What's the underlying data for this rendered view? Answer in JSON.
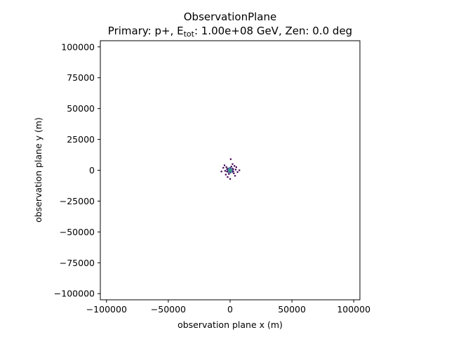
{
  "chart_data": {
    "type": "heatmap",
    "title": "ObservationPlane",
    "subtitle": {
      "prefix": "Primary: p+, E",
      "subscript": "tot",
      "suffix": ": 1.00e+08 GeV, Zen: 0.0 deg"
    },
    "xlabel": "observation plane x (m)",
    "ylabel": "observation plane y (m)",
    "xlim": [
      -105000,
      105000
    ],
    "ylim": [
      -105000,
      105000
    ],
    "xticks": [
      -100000,
      -50000,
      0,
      50000,
      100000
    ],
    "xtick_labels": [
      "−100000",
      "−50000",
      "0",
      "50000",
      "100000"
    ],
    "yticks": [
      100000,
      75000,
      50000,
      25000,
      0,
      -25000,
      -50000,
      -75000,
      -100000
    ],
    "ytick_labels": [
      "100000",
      "75000",
      "50000",
      "25000",
      "0",
      "−25000",
      "−50000",
      "−75000",
      "−100000"
    ],
    "grid": false,
    "colormap": [
      "#440154",
      "#3b528b",
      "#21908d",
      "#5dc963",
      "#fde725"
    ],
    "cells": [
      {
        "x": 0,
        "y": 0,
        "density": 1.0
      },
      {
        "x": 500,
        "y": 500,
        "density": 0.85
      },
      {
        "x": -500,
        "y": -500,
        "density": 0.85
      },
      {
        "x": 500,
        "y": -500,
        "density": 0.8
      },
      {
        "x": -500,
        "y": 500,
        "density": 0.8
      },
      {
        "x": 1000,
        "y": 0,
        "density": 0.6
      },
      {
        "x": -1000,
        "y": 0,
        "density": 0.6
      },
      {
        "x": 0,
        "y": 1000,
        "density": 0.6
      },
      {
        "x": 0,
        "y": -1000,
        "density": 0.6
      },
      {
        "x": 1500,
        "y": 1500,
        "density": 0.4
      },
      {
        "x": -1500,
        "y": -1500,
        "density": 0.4
      },
      {
        "x": 1500,
        "y": -1500,
        "density": 0.35
      },
      {
        "x": -1500,
        "y": 1500,
        "density": 0.35
      },
      {
        "x": 2000,
        "y": 0,
        "density": 0.3
      },
      {
        "x": -2000,
        "y": 0,
        "density": 0.3
      },
      {
        "x": 0,
        "y": 2000,
        "density": 0.3
      },
      {
        "x": 0,
        "y": -2000,
        "density": 0.3
      },
      {
        "x": 2500,
        "y": 1000,
        "density": 0.2
      },
      {
        "x": -2500,
        "y": -1000,
        "density": 0.2
      },
      {
        "x": -2500,
        "y": 1000,
        "density": 0.15
      },
      {
        "x": 2500,
        "y": -1000,
        "density": 0.15
      },
      {
        "x": 1000,
        "y": 3000,
        "density": 0.12
      },
      {
        "x": -1000,
        "y": -3000,
        "density": 0.12
      },
      {
        "x": 3000,
        "y": -2500,
        "density": 0.08
      },
      {
        "x": -3000,
        "y": 2500,
        "density": 0.08
      },
      {
        "x": 4500,
        "y": 500,
        "density": 0.05
      },
      {
        "x": -4000,
        "y": -500,
        "density": 0.05
      },
      {
        "x": 6000,
        "y": -1500,
        "density": 0.03
      },
      {
        "x": -5500,
        "y": 2000,
        "density": 0.03
      },
      {
        "x": 500,
        "y": 9000,
        "density": 0.02
      },
      {
        "x": 2000,
        "y": 5000,
        "density": 0.03
      },
      {
        "x": -2000,
        "y": -5500,
        "density": 0.03
      },
      {
        "x": 3500,
        "y": 3500,
        "density": 0.04
      },
      {
        "x": -3500,
        "y": -3500,
        "density": 0.04
      },
      {
        "x": 7500,
        "y": 0,
        "density": 0.02
      },
      {
        "x": -7000,
        "y": -1000,
        "density": 0.02
      },
      {
        "x": 0,
        "y": -7000,
        "density": 0.02
      },
      {
        "x": 4000,
        "y": -4500,
        "density": 0.03
      },
      {
        "x": -4500,
        "y": 4000,
        "density": 0.03
      },
      {
        "x": 5000,
        "y": 2500,
        "density": 0.02
      }
    ]
  }
}
